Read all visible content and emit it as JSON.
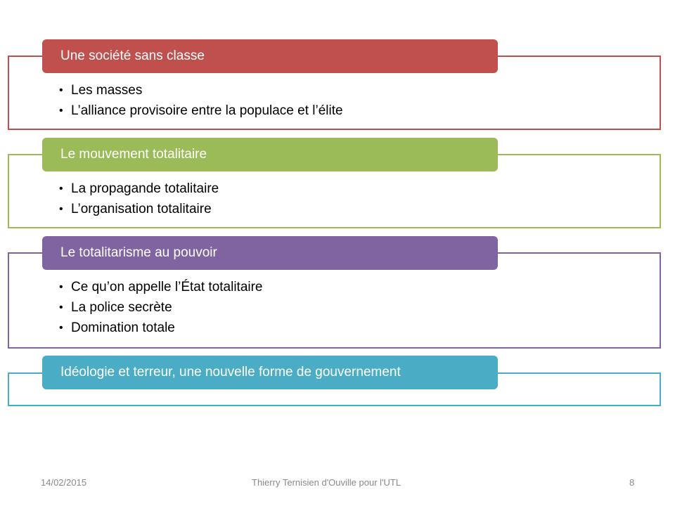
{
  "sections": [
    {
      "title": "Une société sans classe",
      "color": "#c0504d",
      "items": [
        "Les masses",
        "L’alliance provisoire entre la populace et l’élite"
      ]
    },
    {
      "title": "Le mouvement totalitaire",
      "color": "#9bbb59",
      "items": [
        "La propagande totalitaire",
        "L’organisation totalitaire"
      ]
    },
    {
      "title": "Le totalitarisme au pouvoir",
      "color": "#8064a2",
      "items": [
        "Ce qu’on appelle l’État totalitaire",
        "La police secrète",
        "Domination totale"
      ]
    },
    {
      "title": "Idéologie et terreur, une nouvelle forme de gouvernement",
      "color": "#4bacc6",
      "items": []
    }
  ],
  "footer": {
    "date": "14/02/2015",
    "author": "Thierry Ternisien d'Ouville pour l'UTL",
    "page_number": "8"
  }
}
